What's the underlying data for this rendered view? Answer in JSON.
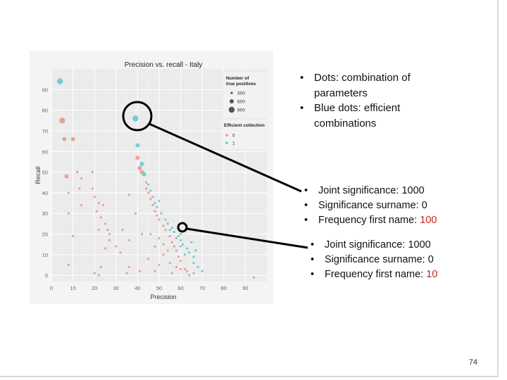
{
  "chart_data": {
    "type": "scatter",
    "title": "Precision vs. recall - Italy",
    "xlabel": "Precision",
    "ylabel": "Recall",
    "xlim": [
      0,
      100
    ],
    "ylim": [
      -3,
      100
    ],
    "xticks": [
      0,
      10,
      20,
      30,
      40,
      50,
      60,
      70,
      80,
      90
    ],
    "yticks": [
      0,
      10,
      20,
      30,
      40,
      50,
      60,
      70,
      80,
      90
    ],
    "grid": true,
    "background": "#ebebeb",
    "legend_position": "right",
    "size_legend": {
      "title": "Number of true positives",
      "entries": [
        "300",
        "600",
        "900"
      ]
    },
    "color_legend": {
      "title": "Efficient collection",
      "entries": [
        {
          "label": "0",
          "color": "#e8938c"
        },
        {
          "label": "1",
          "color": "#5cc8cf"
        }
      ]
    },
    "series": [
      {
        "name": "0",
        "color": "#e8938c",
        "points": [
          [
            5,
            75,
            3
          ],
          [
            6,
            66,
            2
          ],
          [
            10,
            66,
            2
          ],
          [
            7,
            48,
            2
          ],
          [
            12,
            50,
            1
          ],
          [
            14,
            47,
            1
          ],
          [
            19,
            50,
            1
          ],
          [
            13,
            42,
            1
          ],
          [
            19,
            42,
            1
          ],
          [
            8,
            40,
            1
          ],
          [
            20,
            38,
            1
          ],
          [
            8,
            30,
            1
          ],
          [
            14,
            34,
            1
          ],
          [
            22,
            35,
            1
          ],
          [
            24,
            34,
            1
          ],
          [
            21,
            31,
            1
          ],
          [
            23,
            28,
            1
          ],
          [
            25,
            25,
            1
          ],
          [
            26,
            22,
            1
          ],
          [
            27,
            20,
            1
          ],
          [
            22,
            22,
            1
          ],
          [
            27,
            17,
            1
          ],
          [
            25,
            13,
            1
          ],
          [
            36,
            39,
            1
          ],
          [
            33,
            22,
            1
          ],
          [
            36,
            17,
            1
          ],
          [
            30,
            14,
            1
          ],
          [
            32,
            11,
            1
          ],
          [
            10,
            19,
            1
          ],
          [
            23,
            4,
            1
          ],
          [
            40,
            57,
            2
          ],
          [
            42,
            50,
            2
          ],
          [
            41,
            52,
            2
          ],
          [
            44,
            45,
            1
          ],
          [
            44,
            42,
            1
          ],
          [
            45,
            40,
            1
          ],
          [
            46,
            37,
            1
          ],
          [
            47,
            34,
            1
          ],
          [
            48,
            31,
            1
          ],
          [
            49,
            29,
            1
          ],
          [
            50,
            27,
            1
          ],
          [
            52,
            24,
            1
          ],
          [
            53,
            22,
            1
          ],
          [
            55,
            19,
            1
          ],
          [
            56,
            16,
            1
          ],
          [
            57,
            14,
            1
          ],
          [
            58,
            12,
            1
          ],
          [
            59,
            9,
            1
          ],
          [
            60,
            7,
            1
          ],
          [
            54,
            12,
            1
          ],
          [
            52,
            15,
            1
          ],
          [
            50,
            18,
            1
          ],
          [
            46,
            20,
            1
          ],
          [
            48,
            14,
            1
          ],
          [
            45,
            8,
            1
          ],
          [
            55,
            6,
            1
          ],
          [
            50,
            5,
            1
          ],
          [
            42,
            20,
            1
          ],
          [
            39,
            30,
            1
          ],
          [
            52,
            10,
            1
          ],
          [
            58,
            4,
            1
          ],
          [
            60,
            3,
            1
          ],
          [
            62,
            3,
            1
          ],
          [
            41,
            2,
            1
          ],
          [
            36,
            4,
            1
          ],
          [
            20,
            1,
            1
          ],
          [
            35,
            1,
            1
          ],
          [
            8,
            5,
            1
          ],
          [
            22,
            0,
            1
          ],
          [
            48,
            2,
            1
          ],
          [
            56,
            1,
            1
          ],
          [
            63,
            2,
            1
          ],
          [
            66,
            1,
            1
          ],
          [
            64,
            0,
            1
          ]
        ]
      },
      {
        "name": "1",
        "color": "#5cc8cf",
        "points": [
          [
            4,
            94,
            3
          ],
          [
            39,
            76,
            3
          ],
          [
            40,
            63,
            2
          ],
          [
            42,
            54,
            2
          ],
          [
            43,
            49,
            2
          ],
          [
            45,
            44,
            1
          ],
          [
            46,
            41,
            1
          ],
          [
            47,
            38,
            1
          ],
          [
            49,
            33,
            1
          ],
          [
            51,
            30,
            1
          ],
          [
            53,
            27,
            1
          ],
          [
            54,
            25,
            1
          ],
          [
            56,
            23,
            1
          ],
          [
            57,
            21,
            1
          ],
          [
            59,
            19,
            1
          ],
          [
            60,
            17,
            1
          ],
          [
            61,
            15,
            1
          ],
          [
            63,
            13,
            1
          ],
          [
            64,
            11,
            1
          ],
          [
            66,
            9,
            1
          ],
          [
            50,
            36,
            1
          ],
          [
            48,
            35,
            1
          ],
          [
            55,
            22,
            1
          ],
          [
            58,
            18,
            1
          ],
          [
            60,
            20,
            1
          ],
          [
            65,
            16,
            1
          ],
          [
            67,
            12,
            1
          ],
          [
            62,
            10,
            1
          ],
          [
            60,
            14,
            1
          ],
          [
            66,
            6,
            1
          ],
          [
            68,
            4,
            1
          ],
          [
            70,
            2,
            1
          ],
          [
            94,
            -1,
            1
          ]
        ]
      }
    ],
    "annotations": [
      "black-circle-around-blue-point-39-76",
      "black-circle-around-point-60-22"
    ]
  },
  "text": {
    "top_bullets": [
      "Dots: combination of parameters",
      "Blue dots: efficient combinations"
    ],
    "mid_bullets": [
      {
        "label": "Joint significance: ",
        "value": "1000"
      },
      {
        "label": "Significance surname: ",
        "value": "0"
      },
      {
        "label": "Frequency first name: ",
        "value": "100"
      }
    ],
    "bot_bullets": [
      {
        "label": "Joint significance: ",
        "value": "1000"
      },
      {
        "label": "Significance surname: ",
        "value": "0"
      },
      {
        "label": "Frequency first name: ",
        "value": "10"
      }
    ],
    "page_number": "74"
  },
  "colors": {
    "highlight_value": "#cc2222"
  }
}
